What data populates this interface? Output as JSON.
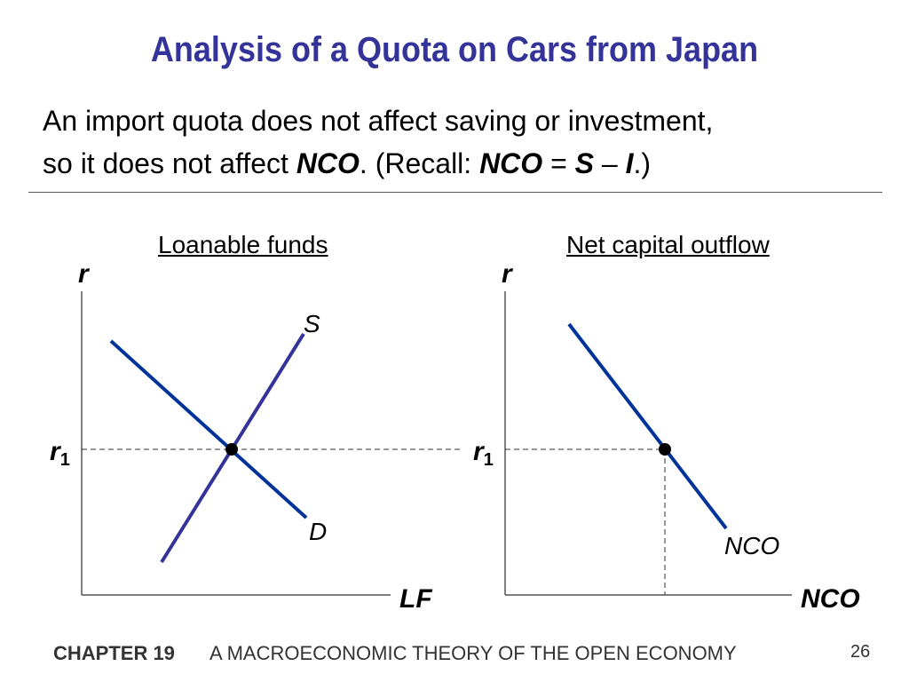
{
  "slide": {
    "title": "Analysis of a Quota on Cars from Japan",
    "intro": {
      "line1": "An import quota does not affect saving or investment,",
      "line2_pre": "so it does not affect ",
      "line2_nco": "NCO",
      "line2_mid": ".  (Recall:  ",
      "line2_eq_nco": "NCO",
      "line2_eq": " = ",
      "line2_s": "S",
      "line2_minus": " – ",
      "line2_i": "I",
      "line2_post": ".)"
    }
  },
  "left_panel": {
    "title": "Loanable funds",
    "y_axis_label": "r",
    "x_axis_label": "LF",
    "r1_label": "r",
    "r1_sub": "1",
    "supply_label": "S",
    "demand_label": "D",
    "line_color": "#003399",
    "supply_color": "#333399"
  },
  "right_panel": {
    "title": "Net capital outflow",
    "y_axis_label": "r",
    "x_axis_label": "NCO",
    "r1_label": "r",
    "r1_sub": "1",
    "curve_label": "NCO",
    "line_color": "#003399"
  },
  "footer": {
    "chapter": "CHAPTER 19",
    "book": "A MACROECONOMIC THEORY OF THE OPEN ECONOMY",
    "page": "26"
  }
}
